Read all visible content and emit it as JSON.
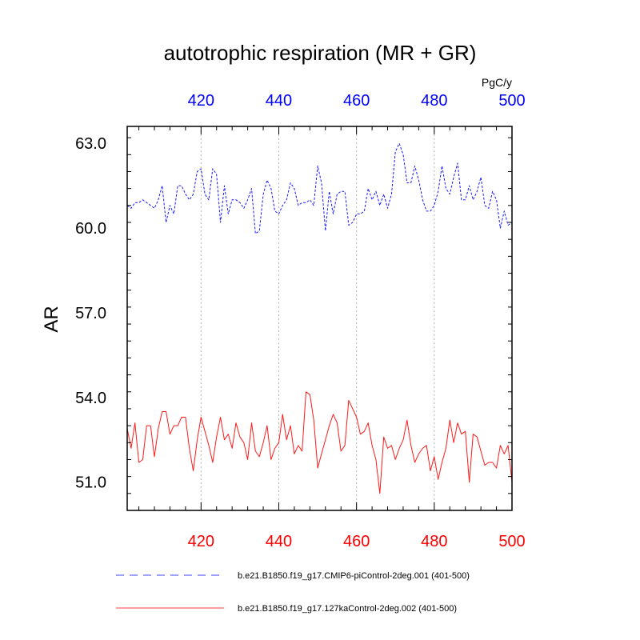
{
  "chart_data": {
    "type": "line",
    "title": "autotrophic respiration (MR + GR)",
    "units": "PgC/y",
    "ylabel": "AR",
    "xlim": [
      401,
      500
    ],
    "ylim": [
      50.0,
      63.6
    ],
    "yticks": [
      51.0,
      54.0,
      57.0,
      60.0,
      63.0
    ],
    "xticks": [
      420,
      440,
      460,
      480,
      500
    ],
    "x_grid_lines": [
      420,
      440,
      460,
      480
    ],
    "axis_colors": {
      "top": "#0000ff",
      "bottom": "#ff0000"
    },
    "series": [
      {
        "name": "b.e21.B1850.f19_g17.CMIP6-piControl-2deg.001 (401-500)",
        "color": "#0000ff",
        "dash": "dashed",
        "x_axis": "top",
        "x_start": 401,
        "values": [
          60.8,
          60.7,
          60.9,
          60.9,
          61.0,
          60.9,
          60.8,
          60.7,
          61.0,
          61.5,
          60.2,
          60.8,
          60.5,
          61.5,
          61.5,
          61.2,
          61.0,
          61.2,
          62.0,
          62.1,
          61.2,
          61.0,
          62.1,
          61.9,
          60.2,
          61.5,
          60.5,
          61.0,
          61.0,
          60.9,
          60.7,
          61.0,
          61.4,
          59.8,
          59.9,
          61.2,
          61.7,
          61.4,
          60.6,
          60.5,
          60.8,
          61.0,
          61.6,
          61.4,
          60.8,
          60.9,
          60.9,
          61.0,
          60.8,
          62.2,
          61.6,
          59.9,
          61.3,
          60.5,
          61.2,
          61.3,
          61.3,
          60.1,
          60.2,
          60.5,
          60.5,
          60.6,
          61.4,
          61.0,
          61.3,
          60.8,
          61.2,
          60.7,
          61.2,
          62.7,
          63.0,
          62.6,
          61.6,
          61.6,
          62.2,
          61.7,
          61.0,
          60.6,
          60.6,
          60.8,
          61.3,
          62.2,
          61.4,
          61.2,
          61.8,
          62.3,
          61.0,
          61.0,
          61.5,
          61.0,
          61.3,
          61.8,
          60.8,
          60.7,
          61.3,
          61.0,
          60.0,
          60.6,
          60.1,
          60.2
        ]
      },
      {
        "name": "b.e21.B1850.f19_g17.127kaControl-2deg.002 (401-500)",
        "color": "#ff0000",
        "dash": "solid",
        "x_axis": "bottom",
        "x_start": 401,
        "values": [
          52.9,
          52.2,
          53.1,
          51.7,
          51.8,
          53.0,
          53.0,
          51.9,
          52.9,
          53.5,
          53.5,
          52.7,
          53.0,
          53.0,
          53.3,
          53.3,
          52.2,
          51.4,
          52.5,
          53.3,
          52.8,
          52.3,
          51.7,
          52.6,
          53.3,
          52.5,
          52.7,
          52.2,
          53.1,
          52.6,
          52.4,
          51.8,
          53.1,
          52.1,
          51.9,
          52.4,
          53.0,
          51.8,
          52.2,
          52.4,
          53.4,
          52.5,
          53.0,
          52.0,
          52.3,
          52.1,
          54.2,
          54.1,
          53.2,
          51.5,
          52.0,
          52.5,
          53.0,
          53.4,
          53.1,
          52.1,
          52.3,
          53.9,
          53.6,
          53.3,
          52.7,
          52.8,
          53.1,
          52.3,
          51.8,
          50.6,
          52.6,
          52.2,
          52.3,
          51.8,
          52.2,
          52.5,
          53.2,
          52.3,
          51.7,
          52.0,
          52.2,
          52.3,
          51.4,
          51.9,
          51.1,
          51.7,
          52.2,
          53.2,
          52.4,
          53.1,
          52.7,
          52.8,
          51.0,
          52.7,
          52.6,
          52.1,
          51.6,
          51.7,
          51.7,
          51.5,
          52.3,
          52.0,
          52.3,
          51.0
        ]
      }
    ]
  }
}
